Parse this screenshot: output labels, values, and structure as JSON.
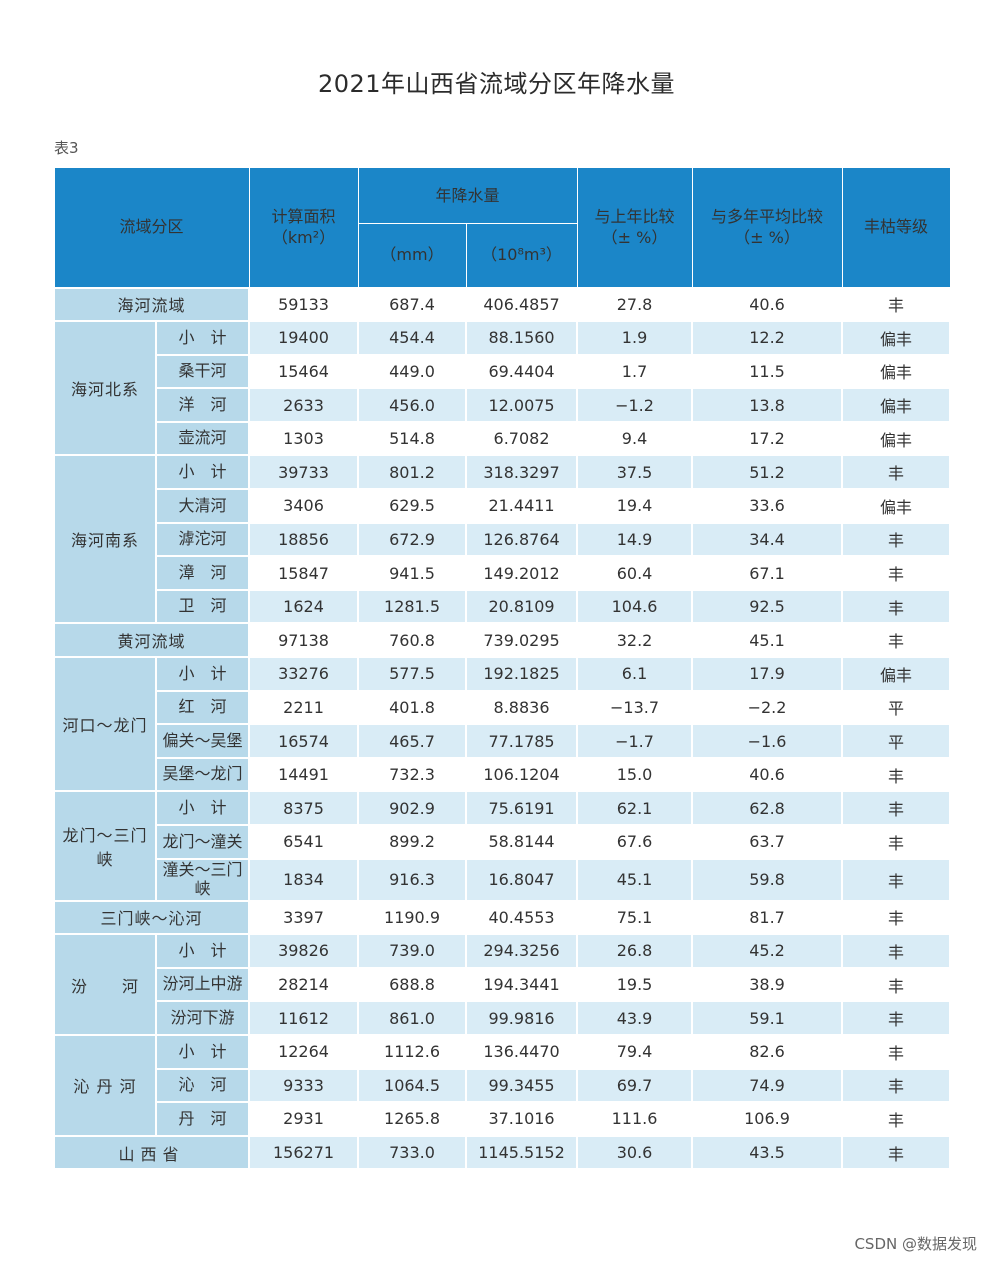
{
  "title": "2021年山西省流域分区年降水量",
  "table_tag": "表3",
  "watermark": "CSDN @数据发现",
  "headers": {
    "region": "流域分区",
    "area": "计算面积",
    "area_unit": "（km²）",
    "precip": "年降水量",
    "mm": "（mm）",
    "volume": "（10⁸m³）",
    "vs_last": "与上年比较",
    "vs_last_unit": "（± %）",
    "vs_avg": "与多年平均比较",
    "vs_avg_unit": "（± %）",
    "grade": "丰枯等级"
  },
  "rows": [
    {
      "group": "海河流域",
      "sub": "",
      "area": "59133",
      "mm": "687.4",
      "vol": "406.4857",
      "last": "27.8",
      "avg": "40.6",
      "grade": "丰"
    },
    {
      "group": "海河北系",
      "sub": "小　计",
      "area": "19400",
      "mm": "454.4",
      "vol": "88.1560",
      "last": "1.9",
      "avg": "12.2",
      "grade": "偏丰"
    },
    {
      "group": "",
      "sub": "桑干河",
      "area": "15464",
      "mm": "449.0",
      "vol": "69.4404",
      "last": "1.7",
      "avg": "11.5",
      "grade": "偏丰"
    },
    {
      "group": "",
      "sub": "洋　河",
      "area": "2633",
      "mm": "456.0",
      "vol": "12.0075",
      "last": "−1.2",
      "avg": "13.8",
      "grade": "偏丰"
    },
    {
      "group": "",
      "sub": "壶流河",
      "area": "1303",
      "mm": "514.8",
      "vol": "6.7082",
      "last": "9.4",
      "avg": "17.2",
      "grade": "偏丰"
    },
    {
      "group": "海河南系",
      "sub": "小　计",
      "area": "39733",
      "mm": "801.2",
      "vol": "318.3297",
      "last": "37.5",
      "avg": "51.2",
      "grade": "丰"
    },
    {
      "group": "",
      "sub": "大清河",
      "area": "3406",
      "mm": "629.5",
      "vol": "21.4411",
      "last": "19.4",
      "avg": "33.6",
      "grade": "偏丰"
    },
    {
      "group": "",
      "sub": "滹沱河",
      "area": "18856",
      "mm": "672.9",
      "vol": "126.8764",
      "last": "14.9",
      "avg": "34.4",
      "grade": "丰"
    },
    {
      "group": "",
      "sub": "漳　河",
      "area": "15847",
      "mm": "941.5",
      "vol": "149.2012",
      "last": "60.4",
      "avg": "67.1",
      "grade": "丰"
    },
    {
      "group": "",
      "sub": "卫　河",
      "area": "1624",
      "mm": "1281.5",
      "vol": "20.8109",
      "last": "104.6",
      "avg": "92.5",
      "grade": "丰"
    },
    {
      "group": "黄河流域",
      "sub": "",
      "area": "97138",
      "mm": "760.8",
      "vol": "739.0295",
      "last": "32.2",
      "avg": "45.1",
      "grade": "丰"
    },
    {
      "group": "河口～龙门",
      "sub": "小　计",
      "area": "33276",
      "mm": "577.5",
      "vol": "192.1825",
      "last": "6.1",
      "avg": "17.9",
      "grade": "偏丰"
    },
    {
      "group": "",
      "sub": "红　河",
      "area": "2211",
      "mm": "401.8",
      "vol": "8.8836",
      "last": "−13.7",
      "avg": "−2.2",
      "grade": "平"
    },
    {
      "group": "",
      "sub": "偏关～吴堡",
      "area": "16574",
      "mm": "465.7",
      "vol": "77.1785",
      "last": "−1.7",
      "avg": "−1.6",
      "grade": "平"
    },
    {
      "group": "",
      "sub": "吴堡～龙门",
      "area": "14491",
      "mm": "732.3",
      "vol": "106.1204",
      "last": "15.0",
      "avg": "40.6",
      "grade": "丰"
    },
    {
      "group": "龙门～三门峡",
      "sub": "小　计",
      "area": "8375",
      "mm": "902.9",
      "vol": "75.6191",
      "last": "62.1",
      "avg": "62.8",
      "grade": "丰"
    },
    {
      "group": "",
      "sub": "龙门～潼关",
      "area": "6541",
      "mm": "899.2",
      "vol": "58.8144",
      "last": "67.6",
      "avg": "63.7",
      "grade": "丰"
    },
    {
      "group": "",
      "sub": "潼关～三门峡",
      "area": "1834",
      "mm": "916.3",
      "vol": "16.8047",
      "last": "45.1",
      "avg": "59.8",
      "grade": "丰"
    },
    {
      "group": "三门峡～沁河",
      "sub": "",
      "area": "3397",
      "mm": "1190.9",
      "vol": "40.4553",
      "last": "75.1",
      "avg": "81.7",
      "grade": "丰"
    },
    {
      "group": "汾　　河",
      "sub": "小　计",
      "area": "39826",
      "mm": "739.0",
      "vol": "294.3256",
      "last": "26.8",
      "avg": "45.2",
      "grade": "丰"
    },
    {
      "group": "",
      "sub": "汾河上中游",
      "area": "28214",
      "mm": "688.8",
      "vol": "194.3441",
      "last": "19.5",
      "avg": "38.9",
      "grade": "丰"
    },
    {
      "group": "",
      "sub": "汾河下游",
      "area": "11612",
      "mm": "861.0",
      "vol": "99.9816",
      "last": "43.9",
      "avg": "59.1",
      "grade": "丰"
    },
    {
      "group": "沁 丹 河",
      "sub": "小　计",
      "area": "12264",
      "mm": "1112.6",
      "vol": "136.4470",
      "last": "79.4",
      "avg": "82.6",
      "grade": "丰"
    },
    {
      "group": "",
      "sub": "沁　河",
      "area": "9333",
      "mm": "1064.5",
      "vol": "99.3455",
      "last": "69.7",
      "avg": "74.9",
      "grade": "丰"
    },
    {
      "group": "",
      "sub": "丹　河",
      "area": "2931",
      "mm": "1265.8",
      "vol": "37.1016",
      "last": "111.6",
      "avg": "106.9",
      "grade": "丰"
    },
    {
      "group": "山西省",
      "sub": "",
      "area": "156271",
      "mm": "733.0",
      "vol": "1145.5152",
      "last": "30.6",
      "avg": "43.5",
      "grade": "丰"
    }
  ]
}
